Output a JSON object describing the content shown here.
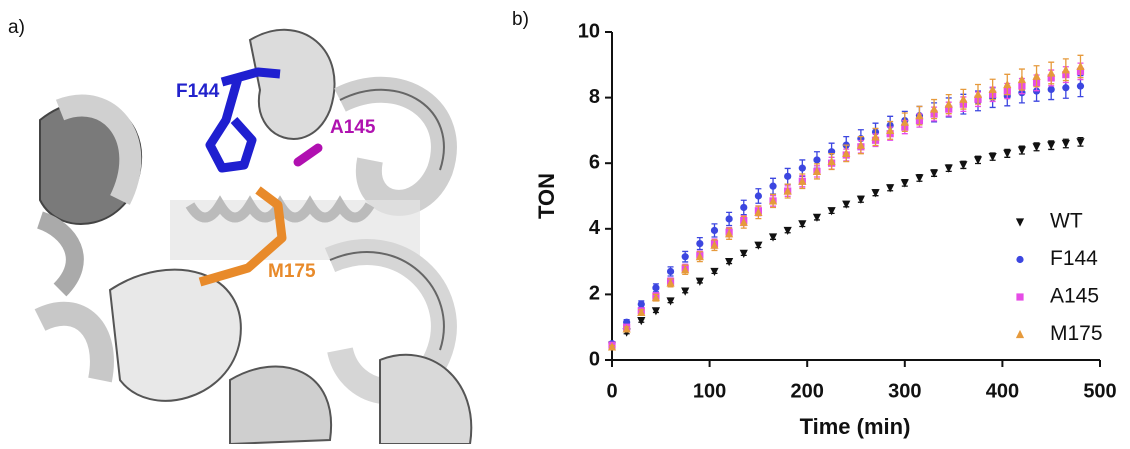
{
  "figure_a": {
    "label": "a)",
    "residues": [
      "F144",
      "A145",
      "M175"
    ]
  },
  "chart_data": {
    "type": "scatter",
    "label": "b)",
    "xlabel": "Time (min)",
    "ylabel": "TON",
    "xlim": [
      0,
      500
    ],
    "xticks": [
      0,
      100,
      200,
      300,
      400,
      500
    ],
    "ylim": [
      0,
      10
    ],
    "yticks": [
      0,
      2,
      4,
      6,
      8,
      10
    ],
    "legend": "lower right",
    "x": [
      0,
      15,
      30,
      45,
      60,
      75,
      90,
      105,
      120,
      135,
      150,
      165,
      180,
      195,
      210,
      225,
      240,
      255,
      270,
      285,
      300,
      315,
      330,
      345,
      360,
      375,
      390,
      405,
      420,
      435,
      450,
      465,
      480
    ],
    "series": [
      {
        "name": "WT",
        "color": "#111111",
        "marker": "triangle-down",
        "values": [
          0.45,
          0.85,
          1.2,
          1.5,
          1.8,
          2.1,
          2.4,
          2.7,
          3.0,
          3.25,
          3.5,
          3.75,
          3.95,
          4.15,
          4.35,
          4.55,
          4.75,
          4.9,
          5.1,
          5.25,
          5.4,
          5.55,
          5.7,
          5.85,
          5.95,
          6.1,
          6.2,
          6.3,
          6.4,
          6.5,
          6.55,
          6.6,
          6.65
        ],
        "errors": [
          0.05,
          0.05,
          0.05,
          0.05,
          0.05,
          0.05,
          0.05,
          0.06,
          0.06,
          0.06,
          0.07,
          0.07,
          0.07,
          0.08,
          0.08,
          0.08,
          0.08,
          0.09,
          0.09,
          0.09,
          0.1,
          0.1,
          0.1,
          0.1,
          0.11,
          0.11,
          0.11,
          0.12,
          0.12,
          0.12,
          0.13,
          0.13,
          0.13
        ]
      },
      {
        "name": "F144",
        "color": "#3c46e0",
        "marker": "circle",
        "values": [
          0.5,
          1.15,
          1.7,
          2.2,
          2.7,
          3.15,
          3.55,
          3.95,
          4.3,
          4.65,
          5.0,
          5.3,
          5.6,
          5.85,
          6.1,
          6.35,
          6.55,
          6.75,
          6.95,
          7.15,
          7.3,
          7.45,
          7.55,
          7.7,
          7.8,
          7.9,
          8.0,
          8.05,
          8.15,
          8.2,
          8.25,
          8.3,
          8.35
        ],
        "errors": [
          0.05,
          0.08,
          0.1,
          0.12,
          0.14,
          0.16,
          0.18,
          0.2,
          0.2,
          0.22,
          0.22,
          0.24,
          0.24,
          0.25,
          0.25,
          0.26,
          0.26,
          0.27,
          0.27,
          0.28,
          0.28,
          0.28,
          0.29,
          0.29,
          0.3,
          0.3,
          0.3,
          0.3,
          0.31,
          0.31,
          0.31,
          0.32,
          0.32
        ]
      },
      {
        "name": "A145",
        "color": "#e64ce6",
        "marker": "square",
        "values": [
          0.45,
          1.0,
          1.5,
          1.95,
          2.4,
          2.8,
          3.2,
          3.55,
          3.9,
          4.25,
          4.55,
          4.85,
          5.15,
          5.45,
          5.75,
          6.0,
          6.25,
          6.5,
          6.7,
          6.9,
          7.1,
          7.3,
          7.5,
          7.65,
          7.8,
          7.95,
          8.1,
          8.2,
          8.35,
          8.45,
          8.6,
          8.7,
          8.8
        ],
        "errors": [
          0.04,
          0.06,
          0.08,
          0.1,
          0.1,
          0.12,
          0.12,
          0.14,
          0.14,
          0.15,
          0.15,
          0.16,
          0.16,
          0.17,
          0.17,
          0.18,
          0.18,
          0.19,
          0.19,
          0.2,
          0.2,
          0.2,
          0.21,
          0.21,
          0.22,
          0.22,
          0.22,
          0.23,
          0.23,
          0.24,
          0.24,
          0.24,
          0.25
        ]
      },
      {
        "name": "M175",
        "color": "#e69a3c",
        "marker": "triangle-up",
        "values": [
          0.4,
          0.95,
          1.45,
          1.9,
          2.35,
          2.75,
          3.15,
          3.5,
          3.85,
          4.2,
          4.5,
          4.85,
          5.15,
          5.45,
          5.75,
          6.05,
          6.3,
          6.55,
          6.8,
          7.0,
          7.25,
          7.45,
          7.65,
          7.8,
          7.95,
          8.1,
          8.25,
          8.4,
          8.55,
          8.65,
          8.75,
          8.85,
          8.95
        ],
        "errors": [
          0.04,
          0.06,
          0.08,
          0.1,
          0.12,
          0.14,
          0.15,
          0.16,
          0.17,
          0.18,
          0.19,
          0.2,
          0.21,
          0.22,
          0.23,
          0.24,
          0.25,
          0.26,
          0.26,
          0.27,
          0.28,
          0.28,
          0.29,
          0.29,
          0.3,
          0.3,
          0.31,
          0.31,
          0.32,
          0.32,
          0.33,
          0.33,
          0.34
        ]
      }
    ]
  }
}
